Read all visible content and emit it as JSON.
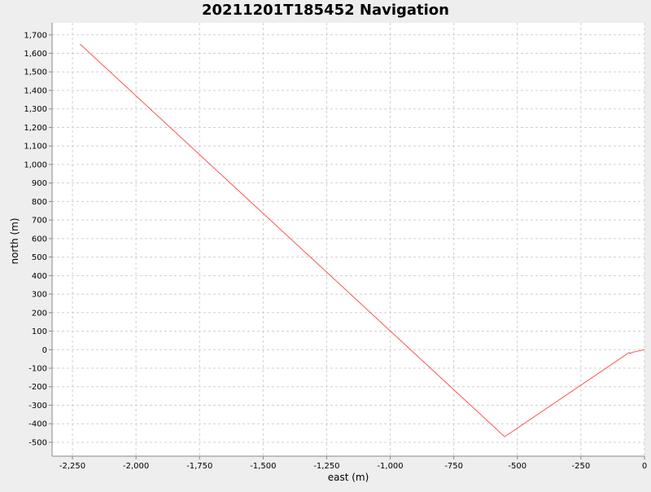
{
  "chart_data": {
    "type": "line",
    "title": "20211201T185452 Navigation",
    "xlabel": "east (m)",
    "ylabel": "north (m)",
    "xlim": [
      -2330,
      0
    ],
    "ylim": [
      -575,
      1765
    ],
    "grid": true,
    "series_color": "#ff5555",
    "plot_bg": "#ffffff",
    "page_bg": "#eeeeee",
    "x_ticks": [
      -2250,
      -2000,
      -1750,
      -1500,
      -1250,
      -1000,
      -750,
      -500,
      -250,
      0
    ],
    "x_tick_labels": [
      "-2,250",
      "-2,000",
      "-1,750",
      "-1,500",
      "-1,250",
      "-1,000",
      "-750",
      "-500",
      "-250",
      "0"
    ],
    "y_ticks": [
      1700,
      1600,
      1500,
      1400,
      1300,
      1200,
      1100,
      1000,
      900,
      800,
      700,
      600,
      500,
      400,
      300,
      200,
      100,
      0,
      -100,
      -200,
      -300,
      -400,
      -500
    ],
    "y_tick_labels": [
      "1,700",
      "1,600",
      "1,500",
      "1,400",
      "1,300",
      "1,200",
      "1,100",
      "1,000",
      "900",
      "800",
      "700",
      "600",
      "500",
      "400",
      "300",
      "200",
      "100",
      "0",
      "-100",
      "-200",
      "-300",
      "-400",
      "-500"
    ],
    "series": [
      {
        "x": [
          -2220,
          -550,
          -60,
          -55,
          -50,
          0
        ],
        "y": [
          1650,
          -470,
          -15,
          -20,
          -15,
          0
        ]
      }
    ]
  }
}
